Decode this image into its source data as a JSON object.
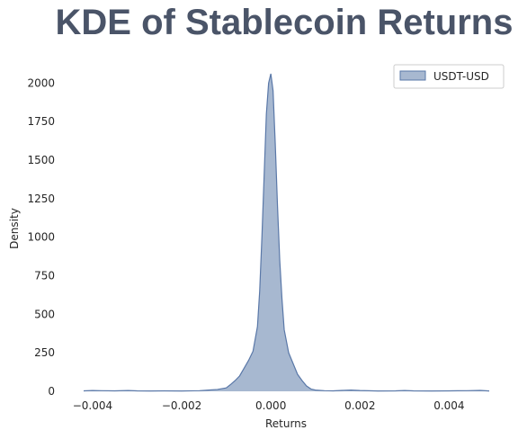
{
  "chart_data": {
    "type": "area",
    "title": "KDE of Stablecoin Returns",
    "xlabel": "Returns",
    "ylabel": "Density",
    "xlim": [
      -0.0042,
      0.0049
    ],
    "ylim": [
      0,
      2060
    ],
    "xticks": [
      -0.004,
      -0.002,
      0.0,
      0.002,
      0.004
    ],
    "xtick_labels": [
      "−0.004",
      "−0.002",
      "0.000",
      "0.002",
      "0.004"
    ],
    "yticks": [
      0,
      250,
      500,
      750,
      1000,
      1250,
      1500,
      1750,
      2000
    ],
    "ytick_labels": [
      "0",
      "250",
      "500",
      "750",
      "1000",
      "1250",
      "1500",
      "1750",
      "2000"
    ],
    "grid": false,
    "legend_position": "top-right",
    "series": [
      {
        "name": "USDT-USD",
        "fill_color": "#a7b8d0",
        "line_color": "#5a78a8",
        "x": [
          -0.0042,
          -0.004,
          -0.0038,
          -0.0035,
          -0.0032,
          -0.003,
          -0.0027,
          -0.0024,
          -0.002,
          -0.0016,
          -0.0014,
          -0.0012,
          -0.001,
          -0.0009,
          -0.0008,
          -0.0007,
          -0.0006,
          -0.0005,
          -0.0004,
          -0.0003,
          -0.00025,
          -0.0002,
          -0.00015,
          -0.0001,
          -5e-05,
          0.0,
          5e-05,
          0.0001,
          0.00015,
          0.0002,
          0.00025,
          0.0003,
          0.0004,
          0.0005,
          0.0006,
          0.0007,
          0.0008,
          0.0009,
          0.001,
          0.0012,
          0.0014,
          0.0016,
          0.0018,
          0.002,
          0.0024,
          0.0028,
          0.003,
          0.0032,
          0.0036,
          0.004,
          0.0044,
          0.0047,
          0.0049
        ],
        "y": [
          3,
          5,
          4,
          3,
          5,
          3,
          2,
          3,
          2,
          4,
          8,
          12,
          22,
          45,
          70,
          100,
          150,
          200,
          260,
          420,
          650,
          1000,
          1400,
          1800,
          2000,
          2060,
          1950,
          1600,
          1200,
          850,
          600,
          400,
          250,
          180,
          110,
          70,
          35,
          15,
          8,
          4,
          3,
          6,
          8,
          5,
          2,
          3,
          5,
          3,
          2,
          3,
          4,
          6,
          2
        ]
      }
    ]
  }
}
